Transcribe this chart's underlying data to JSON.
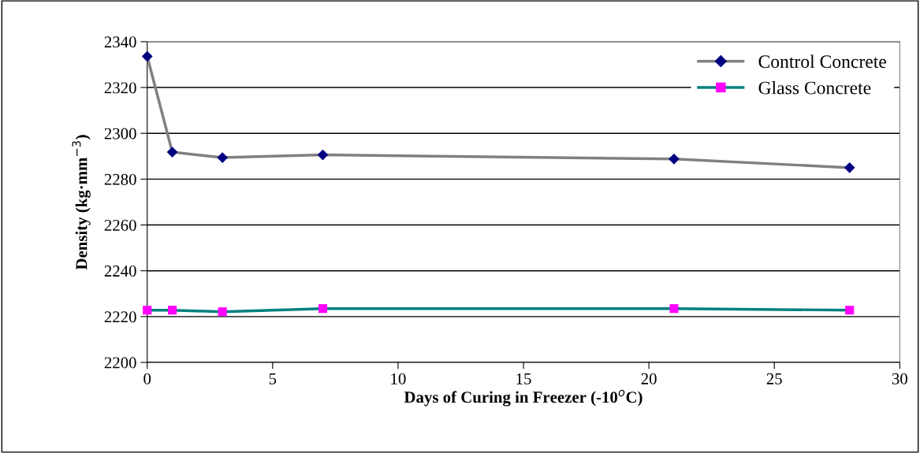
{
  "chart_data": {
    "type": "line",
    "xlabel": "Days of Curing in Freezer (-10$^{o}$C)",
    "ylabel": "Density (kg·mm$^{−3}$)",
    "x": [
      0,
      1,
      3,
      7,
      21,
      28
    ],
    "series": [
      {
        "name": "Control Concrete",
        "color": "#808080",
        "colors": [
          "#000080",
          "#000080",
          "#000080",
          "#000080",
          "#000080",
          "#000080"
        ],
        "marker": "diamond",
        "values": [
          2333.6,
          2291.8,
          2289.4,
          2290.6,
          2288.8,
          2285.0
        ]
      },
      {
        "name": "Glass Concrete",
        "color": "#008080",
        "colors": [
          "#ff00ff",
          "#ff00ff",
          "#ff00ff",
          "#ff00ff",
          "#ff00ff",
          "#ff00ff"
        ],
        "marker": "square",
        "values": [
          2222.8,
          2222.8,
          2222.1,
          2223.5,
          2223.5,
          2222.8
        ]
      }
    ],
    "xlim": [
      0,
      30
    ],
    "xticks": [
      0,
      5,
      10,
      15,
      20,
      25,
      30
    ],
    "ylim": [
      2200,
      2340
    ],
    "yticks": [
      2200,
      2220,
      2240,
      2260,
      2280,
      2300,
      2320,
      2340
    ],
    "grid": "y",
    "legend": "top right",
    "line_style": "solid"
  }
}
